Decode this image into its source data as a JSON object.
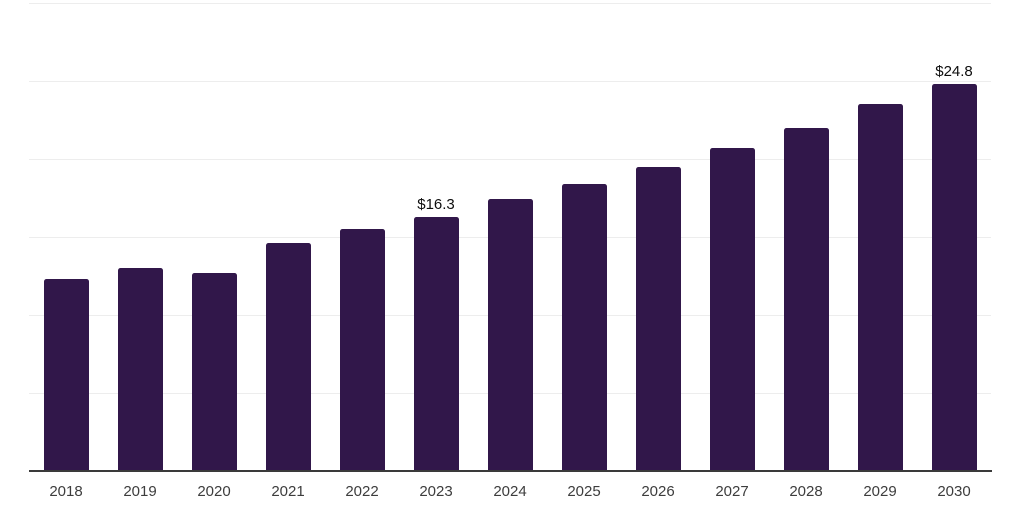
{
  "chart_data": {
    "type": "bar",
    "title": "",
    "categories": [
      "2018",
      "2019",
      "2020",
      "2021",
      "2022",
      "2023",
      "2024",
      "2025",
      "2026",
      "2027",
      "2028",
      "2029",
      "2030"
    ],
    "values": [
      12.3,
      13.0,
      12.7,
      14.6,
      15.5,
      16.3,
      17.4,
      18.4,
      19.5,
      20.7,
      22.0,
      23.5,
      24.8
    ],
    "annotations": {
      "2023": "$16.3",
      "2030": "$24.8"
    },
    "xlabel": "",
    "ylabel": "",
    "ylim": [
      0,
      30
    ],
    "gridline_step": 5,
    "grid": true,
    "y_axis_tick_labels_visible": false,
    "legend": "none",
    "colors": {
      "bar": "#31174a",
      "gridline": "#ededed",
      "axis_line": "#3a3a3a",
      "tick_label": "#3d3d3d",
      "value_label": "#0d0d0d",
      "background": "#ffffff"
    }
  }
}
